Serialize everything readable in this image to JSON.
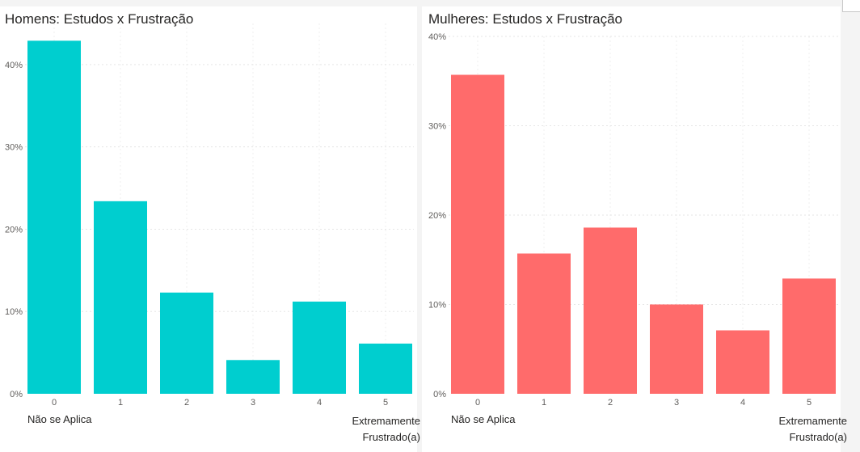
{
  "colors": {
    "men": "#00cecf",
    "women": "#ff6b6b",
    "grid": "#e5e5e5",
    "tick": "#605e5c"
  },
  "chart_data": [
    {
      "type": "bar",
      "title": "Homens: Estudos x Frustração",
      "categories": [
        "0",
        "1",
        "2",
        "3",
        "4",
        "5"
      ],
      "values": [
        42.9,
        23.4,
        12.3,
        4.1,
        11.2,
        6.1
      ],
      "ylim": [
        0,
        45
      ],
      "yticks": [
        "0%",
        "10%",
        "20%",
        "30%",
        "40%"
      ],
      "ytick_values": [
        0,
        10,
        20,
        30,
        40
      ],
      "grid": true,
      "low_label": "Não se Aplica",
      "high_label_line1": "Extremamente",
      "high_label_line2": "Frustrado(a)"
    },
    {
      "type": "bar",
      "title": "Mulheres: Estudos x Frustração",
      "categories": [
        "0",
        "1",
        "2",
        "3",
        "4",
        "5"
      ],
      "values": [
        35.7,
        15.7,
        18.6,
        10.0,
        7.1,
        12.9
      ],
      "ylim": [
        0,
        40
      ],
      "yticks": [
        "0%",
        "10%",
        "20%",
        "30%",
        "40%"
      ],
      "ytick_values": [
        0,
        10,
        20,
        30,
        40
      ],
      "grid": true,
      "low_label": "Não se Aplica",
      "high_label_line1": "Extremamente",
      "high_label_line2": "Frustrado(a)"
    }
  ]
}
